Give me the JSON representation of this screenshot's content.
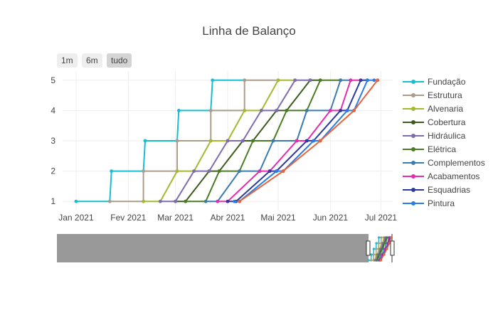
{
  "title": "Linha de Balanço",
  "range_selector": {
    "buttons": [
      "1m",
      "6m",
      "tudo"
    ],
    "active": "tudo"
  },
  "legend_position": "right",
  "chart_data": {
    "type": "line",
    "title": "Linha de Balanço",
    "xlabel": "",
    "ylabel": "",
    "x_axis": "date",
    "xlim": [
      "2020-12-24",
      "2021-07-08"
    ],
    "ylim": [
      0.7,
      5.3
    ],
    "x_ticks": [
      {
        "date": "2021-01-01",
        "label": "Jan 2021"
      },
      {
        "date": "2021-02-01",
        "label": "Fev 2021"
      },
      {
        "date": "2021-03-01",
        "label": "Mar 2021"
      },
      {
        "date": "2021-04-01",
        "label": "Abr 2021"
      },
      {
        "date": "2021-05-01",
        "label": "Mai 2021"
      },
      {
        "date": "2021-06-01",
        "label": "Jun 2021"
      },
      {
        "date": "2021-07-01",
        "label": "Jul 2021"
      }
    ],
    "y_ticks": [
      1,
      2,
      3,
      4,
      5
    ],
    "grid": true,
    "rangeslider": true,
    "series": [
      {
        "name": "Fundação",
        "color": "#17becf",
        "points": [
          {
            "x": "2021-01-01",
            "y": 1
          },
          {
            "x": "2021-01-21",
            "y": 1
          },
          {
            "x": "2021-01-22",
            "y": 2
          },
          {
            "x": "2021-02-10",
            "y": 2
          },
          {
            "x": "2021-02-11",
            "y": 3
          },
          {
            "x": "2021-03-02",
            "y": 3
          },
          {
            "x": "2021-03-03",
            "y": 4
          },
          {
            "x": "2021-03-22",
            "y": 4
          },
          {
            "x": "2021-03-23",
            "y": 5
          },
          {
            "x": "2021-04-11",
            "y": 5
          }
        ]
      },
      {
        "name": "Estrutura",
        "color": "#ab9c8c",
        "points": [
          {
            "x": "2021-01-21",
            "y": 1
          },
          {
            "x": "2021-02-10",
            "y": 1
          },
          {
            "x": "2021-02-10",
            "y": 2
          },
          {
            "x": "2021-03-02",
            "y": 2
          },
          {
            "x": "2021-03-02",
            "y": 3
          },
          {
            "x": "2021-03-22",
            "y": 3
          },
          {
            "x": "2021-03-22",
            "y": 4
          },
          {
            "x": "2021-04-11",
            "y": 4
          },
          {
            "x": "2021-04-11",
            "y": 5
          },
          {
            "x": "2021-05-01",
            "y": 5
          }
        ]
      },
      {
        "name": "Alvenaria",
        "color": "#a5b82e",
        "points": [
          {
            "x": "2021-02-10",
            "y": 1
          },
          {
            "x": "2021-02-20",
            "y": 1
          },
          {
            "x": "2021-03-02",
            "y": 2
          },
          {
            "x": "2021-03-12",
            "y": 2
          },
          {
            "x": "2021-03-22",
            "y": 3
          },
          {
            "x": "2021-04-01",
            "y": 3
          },
          {
            "x": "2021-04-11",
            "y": 4
          },
          {
            "x": "2021-04-21",
            "y": 4
          },
          {
            "x": "2021-05-01",
            "y": 5
          },
          {
            "x": "2021-05-11",
            "y": 5
          }
        ]
      },
      {
        "name": "Cobertura",
        "color": "#3c5b1c",
        "points": [
          {
            "x": "2021-03-01",
            "y": 1
          },
          {
            "x": "2021-03-07",
            "y": 1
          },
          {
            "x": "2021-03-21",
            "y": 2
          },
          {
            "x": "2021-03-27",
            "y": 2
          },
          {
            "x": "2021-04-10",
            "y": 3
          },
          {
            "x": "2021-04-16",
            "y": 3
          },
          {
            "x": "2021-04-30",
            "y": 4
          },
          {
            "x": "2021-05-06",
            "y": 4
          },
          {
            "x": "2021-05-20",
            "y": 5
          },
          {
            "x": "2021-05-26",
            "y": 5
          }
        ]
      },
      {
        "name": "Hidráulica",
        "color": "#7f6bb0",
        "points": [
          {
            "x": "2021-02-20",
            "y": 1
          },
          {
            "x": "2021-03-01",
            "y": 1
          },
          {
            "x": "2021-03-12",
            "y": 2
          },
          {
            "x": "2021-03-21",
            "y": 2
          },
          {
            "x": "2021-04-01",
            "y": 3
          },
          {
            "x": "2021-04-10",
            "y": 3
          },
          {
            "x": "2021-04-21",
            "y": 4
          },
          {
            "x": "2021-04-30",
            "y": 4
          },
          {
            "x": "2021-05-11",
            "y": 5
          },
          {
            "x": "2021-05-20",
            "y": 5
          }
        ]
      },
      {
        "name": "Elétrica",
        "color": "#4a7c23",
        "points": [
          {
            "x": "2021-03-07",
            "y": 1
          },
          {
            "x": "2021-03-19",
            "y": 1
          },
          {
            "x": "2021-03-27",
            "y": 2
          },
          {
            "x": "2021-04-08",
            "y": 2
          },
          {
            "x": "2021-04-16",
            "y": 3
          },
          {
            "x": "2021-04-28",
            "y": 3
          },
          {
            "x": "2021-05-06",
            "y": 4
          },
          {
            "x": "2021-05-18",
            "y": 4
          },
          {
            "x": "2021-05-26",
            "y": 5
          },
          {
            "x": "2021-06-07",
            "y": 5
          }
        ]
      },
      {
        "name": "Complementos",
        "color": "#3a7bb0",
        "points": [
          {
            "x": "2021-03-19",
            "y": 1
          },
          {
            "x": "2021-03-26",
            "y": 1
          },
          {
            "x": "2021-04-08",
            "y": 2
          },
          {
            "x": "2021-04-20",
            "y": 2
          },
          {
            "x": "2021-04-28",
            "y": 3
          },
          {
            "x": "2021-05-12",
            "y": 3
          },
          {
            "x": "2021-05-18",
            "y": 4
          },
          {
            "x": "2021-06-01",
            "y": 4
          },
          {
            "x": "2021-06-07",
            "y": 5
          },
          {
            "x": "2021-06-13",
            "y": 5
          }
        ]
      },
      {
        "name": "Acabamentos",
        "color": "#e62bb0",
        "points": [
          {
            "x": "2021-03-26",
            "y": 1
          },
          {
            "x": "2021-04-01",
            "y": 1
          },
          {
            "x": "2021-04-20",
            "y": 2
          },
          {
            "x": "2021-04-26",
            "y": 2
          },
          {
            "x": "2021-05-12",
            "y": 3
          },
          {
            "x": "2021-05-18",
            "y": 3
          },
          {
            "x": "2021-06-01",
            "y": 4
          },
          {
            "x": "2021-06-07",
            "y": 4
          },
          {
            "x": "2021-06-13",
            "y": 5
          },
          {
            "x": "2021-06-19",
            "y": 5
          }
        ]
      },
      {
        "name": "Esquadrias",
        "color": "#2c3a9c",
        "points": [
          {
            "x": "2021-04-01",
            "y": 1
          },
          {
            "x": "2021-04-06",
            "y": 1
          },
          {
            "x": "2021-04-26",
            "y": 2
          },
          {
            "x": "2021-04-30",
            "y": 2
          },
          {
            "x": "2021-05-18",
            "y": 3
          },
          {
            "x": "2021-05-22",
            "y": 3
          },
          {
            "x": "2021-06-07",
            "y": 4
          },
          {
            "x": "2021-06-11",
            "y": 4
          },
          {
            "x": "2021-06-19",
            "y": 5
          },
          {
            "x": "2021-06-23",
            "y": 5
          }
        ]
      },
      {
        "name": "Pintura",
        "color": "#2a7ce8",
        "points": [
          {
            "x": "2021-04-05",
            "y": 1
          },
          {
            "x": "2021-04-08",
            "y": 1
          },
          {
            "x": "2021-04-30",
            "y": 2
          },
          {
            "x": "2021-05-04",
            "y": 2
          },
          {
            "x": "2021-05-22",
            "y": 3
          },
          {
            "x": "2021-05-26",
            "y": 3
          },
          {
            "x": "2021-06-11",
            "y": 4
          },
          {
            "x": "2021-06-15",
            "y": 4
          },
          {
            "x": "2021-06-23",
            "y": 5
          },
          {
            "x": "2021-06-27",
            "y": 5
          }
        ]
      },
      {
        "name": "",
        "color": "#e8633c",
        "points": [
          {
            "x": "2021-04-08",
            "y": 1
          },
          {
            "x": "2021-04-08",
            "y": 1
          },
          {
            "x": "2021-05-04",
            "y": 2
          },
          {
            "x": "2021-05-04",
            "y": 2
          },
          {
            "x": "2021-05-26",
            "y": 3
          },
          {
            "x": "2021-05-26",
            "y": 3
          },
          {
            "x": "2021-06-15",
            "y": 4
          },
          {
            "x": "2021-06-15",
            "y": 4
          },
          {
            "x": "2021-06-29",
            "y": 5
          },
          {
            "x": "2021-06-29",
            "y": 5
          }
        ]
      }
    ]
  }
}
